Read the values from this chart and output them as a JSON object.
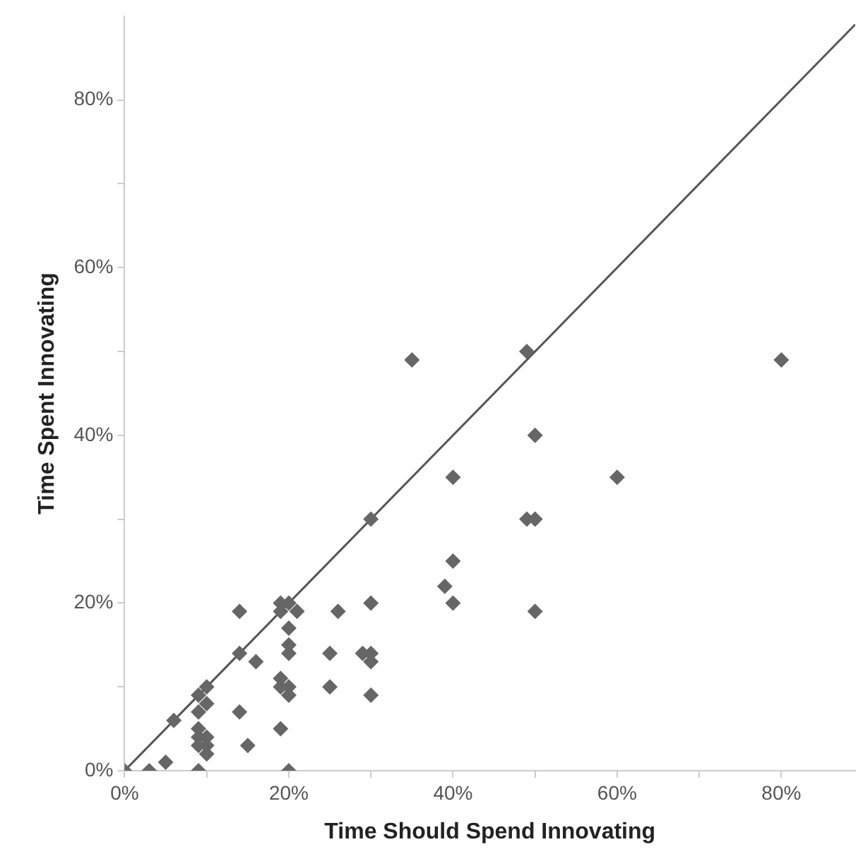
{
  "chart_data": {
    "type": "scatter",
    "xlabel": "Time Should Spend Innovating",
    "ylabel": "Time Spent Innovating",
    "marker": "diamond",
    "grid": false,
    "xlim": [
      0,
      89
    ],
    "ylim": [
      0,
      90
    ],
    "xticks": [
      {
        "value": 0,
        "label": "0%"
      },
      {
        "value": 10,
        "label": null
      },
      {
        "value": 20,
        "label": "20%"
      },
      {
        "value": 30,
        "label": null
      },
      {
        "value": 40,
        "label": "40%"
      },
      {
        "value": 50,
        "label": null
      },
      {
        "value": 60,
        "label": "60%"
      },
      {
        "value": 70,
        "label": null
      },
      {
        "value": 80,
        "label": "80%"
      }
    ],
    "yticks": [
      {
        "value": 0,
        "label": "0%"
      },
      {
        "value": 10,
        "label": null
      },
      {
        "value": 20,
        "label": "20%"
      },
      {
        "value": 30,
        "label": null
      },
      {
        "value": 40,
        "label": "40%"
      },
      {
        "value": 50,
        "label": null
      },
      {
        "value": 60,
        "label": "60%"
      },
      {
        "value": 70,
        "label": null
      },
      {
        "value": 80,
        "label": "80%"
      }
    ],
    "series": [
      {
        "color": "#666666",
        "x": [
          0,
          3,
          5,
          9,
          20,
          6,
          9,
          10,
          10,
          9,
          9,
          10,
          9,
          10,
          9,
          10,
          14,
          14,
          16,
          14,
          15,
          19,
          19,
          20,
          19,
          21,
          20,
          20,
          20,
          19,
          20,
          19,
          20,
          25,
          26,
          25,
          30,
          29,
          30,
          30,
          30,
          35,
          49,
          80,
          50,
          40,
          60,
          30,
          49,
          50,
          40,
          39,
          40,
          50
        ],
        "values": [
          0,
          0,
          1,
          0,
          0,
          6,
          9,
          10,
          8,
          7,
          5,
          4,
          4,
          3,
          3,
          2,
          19,
          14,
          13,
          7,
          3,
          5,
          20,
          20,
          19,
          19,
          17,
          15,
          14,
          11,
          10,
          10,
          9,
          14,
          19,
          10,
          20,
          14,
          14,
          13,
          9,
          49,
          50,
          49,
          40,
          35,
          35,
          30,
          30,
          30,
          25,
          22,
          20,
          19
        ]
      },
      {
        "type": "line",
        "marker": "none",
        "color": "#555555",
        "x": [
          0,
          89
        ],
        "values": [
          0,
          89
        ]
      }
    ]
  }
}
